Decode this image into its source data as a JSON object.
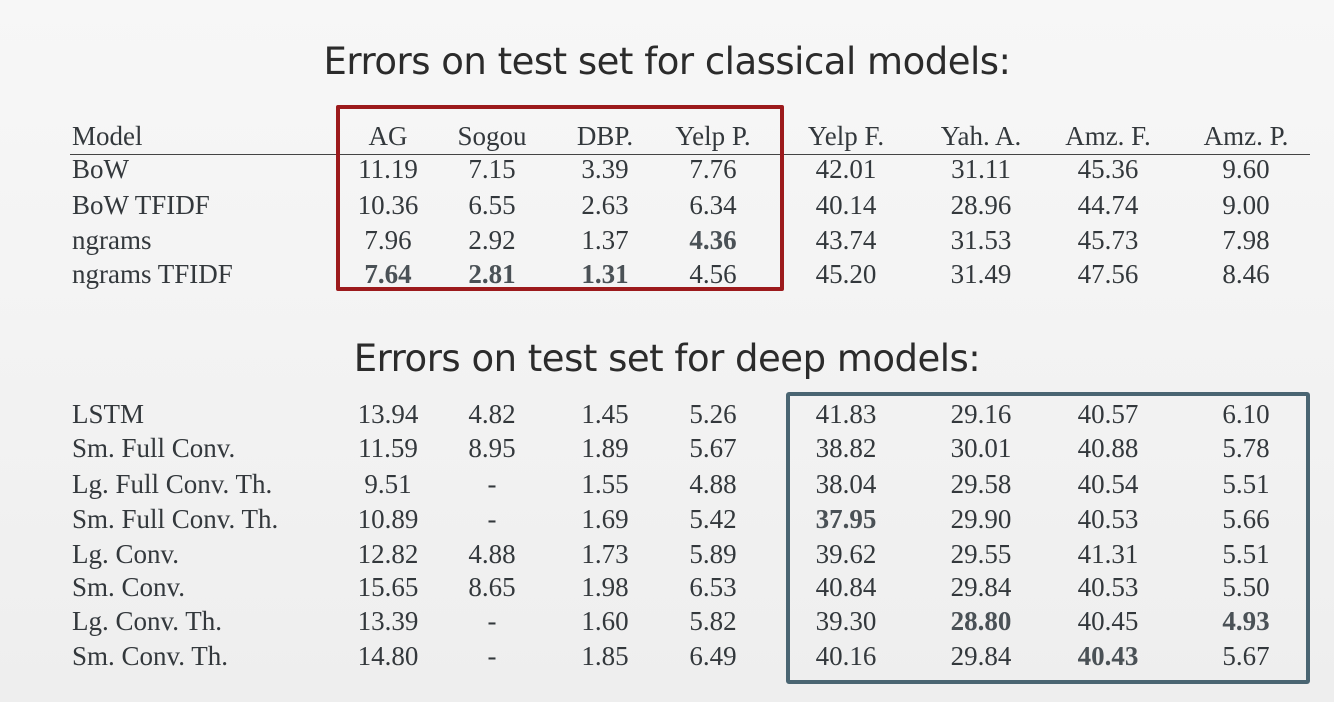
{
  "classical": {
    "title": "Errors on test set for classical models:",
    "headers": [
      "Model",
      "AG",
      "Sogou",
      "DBP.",
      "Yelp P.",
      "Yelp F.",
      "Yah. A.",
      "Amz. F.",
      "Amz. P."
    ],
    "rows": [
      {
        "model": "BoW",
        "values": [
          "11.19",
          "7.15",
          "3.39",
          "7.76",
          "42.01",
          "31.11",
          "45.36",
          "9.60"
        ],
        "bold": []
      },
      {
        "model": "BoW TFIDF",
        "values": [
          "10.36",
          "6.55",
          "2.63",
          "6.34",
          "40.14",
          "28.96",
          "44.74",
          "9.00"
        ],
        "bold": []
      },
      {
        "model": "ngrams",
        "values": [
          "7.96",
          "2.92",
          "1.37",
          "4.36",
          "43.74",
          "31.53",
          "45.73",
          "7.98"
        ],
        "bold": [
          3
        ]
      },
      {
        "model": "ngrams TFIDF",
        "values": [
          "7.64",
          "2.81",
          "1.31",
          "4.56",
          "45.20",
          "31.49",
          "47.56",
          "8.46"
        ],
        "bold": [
          0,
          1,
          2
        ]
      }
    ],
    "highlight_color": "#9c1a1c"
  },
  "deep": {
    "title": "Errors on test set for deep models:",
    "rows": [
      {
        "model": "LSTM",
        "values": [
          "13.94",
          "4.82",
          "1.45",
          "5.26",
          "41.83",
          "29.16",
          "40.57",
          "6.10"
        ],
        "bold": []
      },
      {
        "model": "Sm. Full Conv.",
        "values": [
          "11.59",
          "8.95",
          "1.89",
          "5.67",
          "38.82",
          "30.01",
          "40.88",
          "5.78"
        ],
        "bold": []
      },
      {
        "model": "Lg. Full Conv. Th.",
        "values": [
          "9.51",
          "-",
          "1.55",
          "4.88",
          "38.04",
          "29.58",
          "40.54",
          "5.51"
        ],
        "bold": []
      },
      {
        "model": "Sm. Full Conv. Th.",
        "values": [
          "10.89",
          "-",
          "1.69",
          "5.42",
          "37.95",
          "29.90",
          "40.53",
          "5.66"
        ],
        "bold": [
          4
        ]
      },
      {
        "model": "Lg. Conv.",
        "values": [
          "12.82",
          "4.88",
          "1.73",
          "5.89",
          "39.62",
          "29.55",
          "41.31",
          "5.51"
        ],
        "bold": []
      },
      {
        "model": "Sm. Conv.",
        "values": [
          "15.65",
          "8.65",
          "1.98",
          "6.53",
          "40.84",
          "29.84",
          "40.53",
          "5.50"
        ],
        "bold": []
      },
      {
        "model": "Lg. Conv. Th.",
        "values": [
          "13.39",
          "-",
          "1.60",
          "5.82",
          "39.30",
          "28.80",
          "40.45",
          "4.93"
        ],
        "bold": [
          5,
          7
        ]
      },
      {
        "model": "Sm. Conv. Th.",
        "values": [
          "14.80",
          "-",
          "1.85",
          "6.49",
          "40.16",
          "29.84",
          "40.43",
          "5.67"
        ],
        "bold": [
          6
        ]
      }
    ],
    "highlight_color": "#4a6572"
  }
}
